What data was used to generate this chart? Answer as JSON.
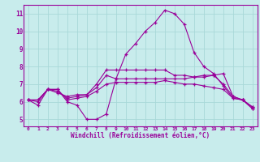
{
  "background_color": "#c8ecec",
  "grid_color": "#a8d8d8",
  "line_color": "#990099",
  "marker": "+",
  "xlabel": "Windchill (Refroidissement éolien,°C)",
  "ylabel_ticks": [
    5,
    6,
    7,
    8,
    9,
    10,
    11
  ],
  "xlim": [
    -0.5,
    23.5
  ],
  "ylim": [
    4.6,
    11.5
  ],
  "series": [
    {
      "x": [
        0,
        1,
        2,
        3,
        4,
        5,
        6,
        7,
        8,
        9,
        10,
        11,
        12,
        13,
        14,
        15,
        16,
        17,
        18,
        19,
        20,
        21,
        22,
        23
      ],
      "y": [
        6.1,
        5.8,
        6.7,
        6.7,
        6.0,
        5.8,
        5.0,
        5.0,
        5.3,
        7.3,
        8.7,
        9.3,
        10.0,
        10.5,
        11.2,
        11.0,
        10.4,
        8.8,
        8.0,
        7.6,
        6.9,
        6.2,
        6.1,
        5.6
      ]
    },
    {
      "x": [
        0,
        1,
        2,
        3,
        4,
        5,
        6,
        7,
        8,
        9,
        10,
        11,
        12,
        13,
        14,
        15,
        16,
        17,
        18,
        19,
        20,
        21,
        22,
        23
      ],
      "y": [
        6.1,
        6.1,
        6.7,
        6.6,
        6.2,
        6.3,
        6.4,
        6.8,
        7.5,
        7.3,
        7.3,
        7.3,
        7.3,
        7.3,
        7.3,
        7.3,
        7.3,
        7.4,
        7.4,
        7.5,
        7.6,
        6.3,
        6.1,
        5.7
      ]
    },
    {
      "x": [
        0,
        1,
        2,
        3,
        4,
        5,
        6,
        7,
        8,
        9,
        10,
        11,
        12,
        13,
        14,
        15,
        16,
        17,
        18,
        19,
        20,
        21,
        22,
        23
      ],
      "y": [
        6.1,
        6.0,
        6.7,
        6.7,
        6.1,
        6.2,
        6.3,
        6.6,
        7.0,
        7.1,
        7.1,
        7.1,
        7.1,
        7.1,
        7.2,
        7.1,
        7.0,
        7.0,
        6.9,
        6.8,
        6.7,
        6.2,
        6.1,
        5.7
      ]
    },
    {
      "x": [
        0,
        1,
        2,
        3,
        4,
        5,
        6,
        7,
        8,
        9,
        10,
        11,
        12,
        13,
        14,
        15,
        16,
        17,
        18,
        19,
        20,
        21,
        22,
        23
      ],
      "y": [
        6.1,
        6.1,
        6.7,
        6.5,
        6.3,
        6.4,
        6.4,
        7.0,
        7.8,
        7.8,
        7.8,
        7.8,
        7.8,
        7.8,
        7.8,
        7.5,
        7.5,
        7.4,
        7.5,
        7.5,
        7.0,
        6.3,
        6.1,
        5.6
      ]
    }
  ]
}
